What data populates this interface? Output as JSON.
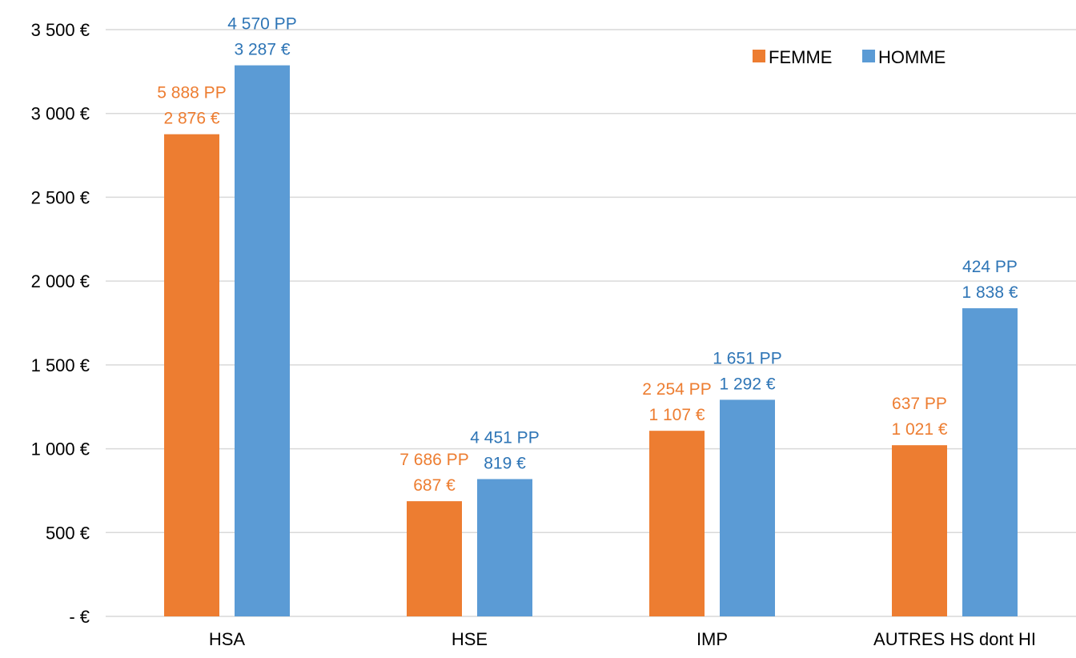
{
  "chart_data": {
    "type": "bar",
    "title": "",
    "xlabel": "",
    "ylabel": "",
    "categories": [
      "HSA",
      "HSE",
      "IMP",
      "AUTRES HS dont HI"
    ],
    "ylim": [
      0,
      3500
    ],
    "yticks": [
      0,
      500,
      1000,
      1500,
      2000,
      2500,
      3000,
      3500
    ],
    "ytick_labels": [
      "-  €",
      "500 €",
      "1 000 €",
      "1 500 €",
      "2 000 €",
      "2 500 €",
      "3 000 €",
      "3 500 €"
    ],
    "grid": true,
    "legend_position": "top-right",
    "series": [
      {
        "name": "FEMME",
        "color": "#ed7d31",
        "label_color": "#ed7d31",
        "values": [
          2876,
          687,
          1107,
          1021
        ],
        "value_labels": [
          "2 876 €",
          "687 €",
          "1 107 €",
          "1 021 €"
        ],
        "pp_labels": [
          "5 888 PP",
          "7 686 PP",
          "2 254 PP",
          "637 PP"
        ]
      },
      {
        "name": "HOMME",
        "color": "#5b9bd5",
        "label_color": "#2e75b6",
        "values": [
          3287,
          819,
          1292,
          1838
        ],
        "value_labels": [
          "3 287 €",
          "819 €",
          "1 292 €",
          "1 838 €"
        ],
        "pp_labels": [
          "4 570 PP",
          "4 451 PP",
          "1 651 PP",
          "424 PP"
        ]
      }
    ]
  }
}
